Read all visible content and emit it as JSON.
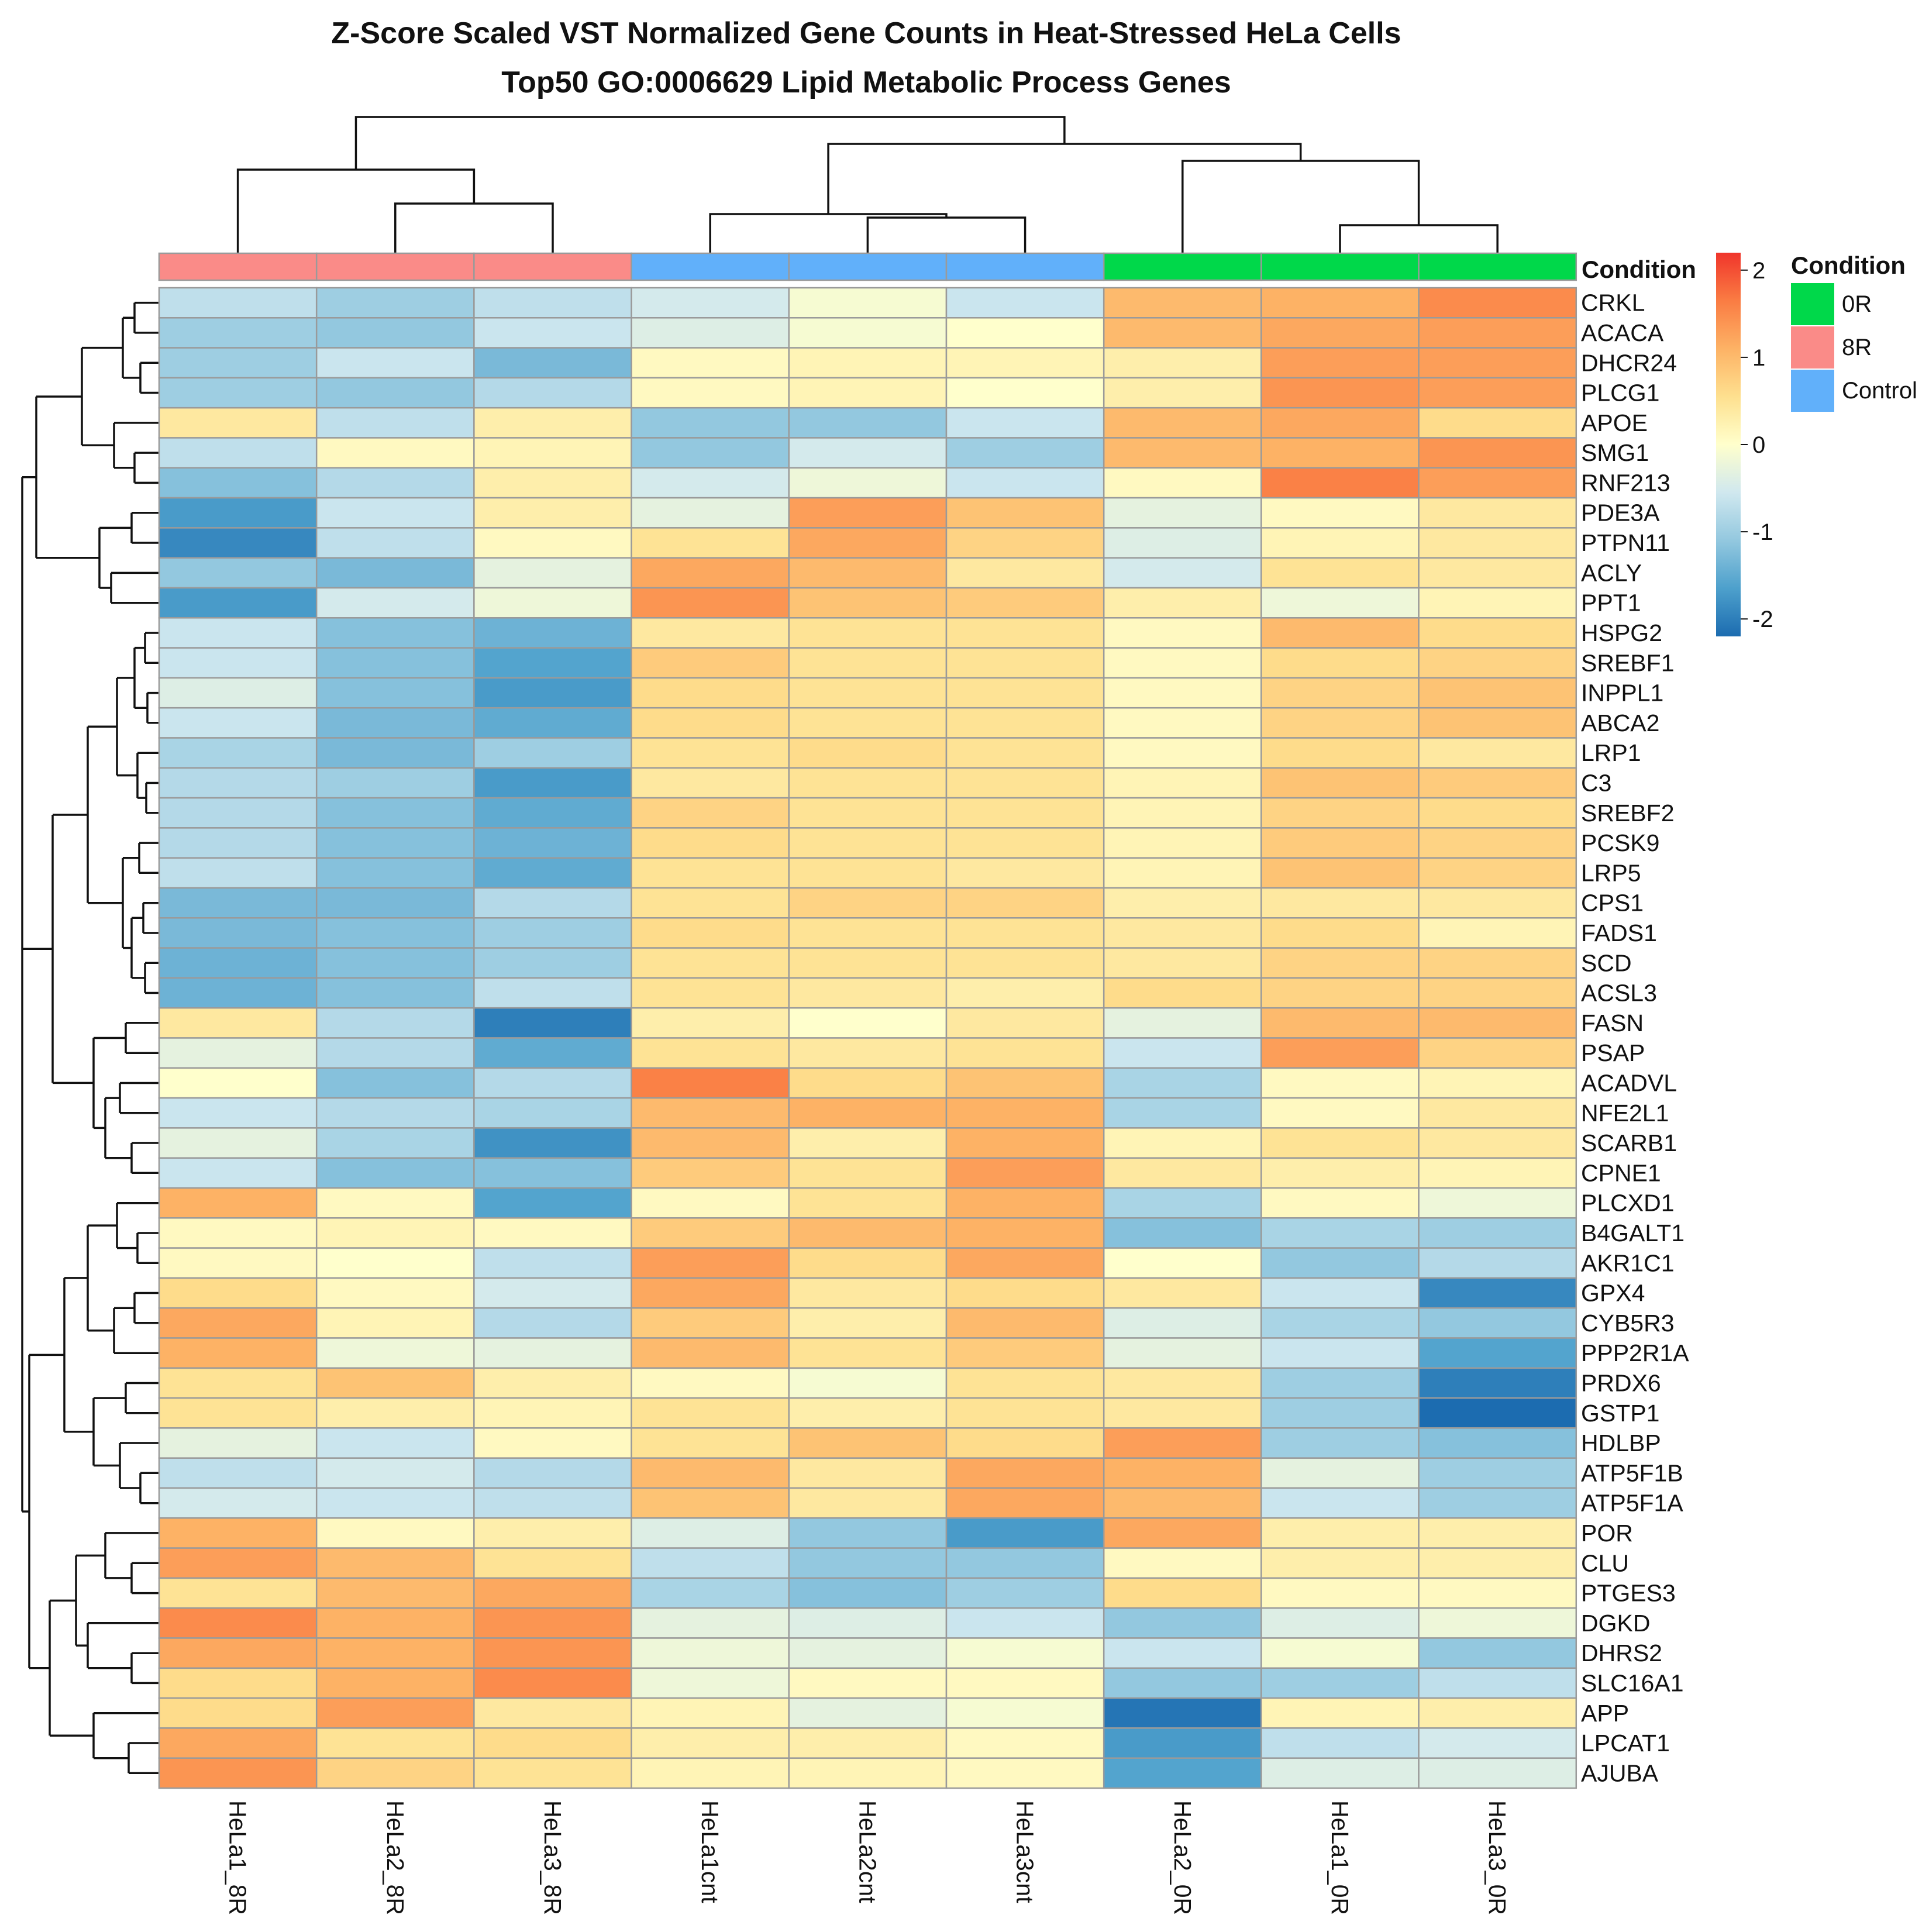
{
  "chart_data": {
    "type": "heatmap",
    "title": "Z-Score Scaled VST Normalized Gene Counts in Heat-Stressed HeLa Cells",
    "subtitle": "Top50 GO:0006629 Lipid Metabolic Process Genes",
    "samples": [
      "HeLa1_8R",
      "HeLa2_8R",
      "HeLa3_8R",
      "HeLa1cnt",
      "HeLa2cnt",
      "HeLa3cnt",
      "HeLa2_0R",
      "HeLa1_0R",
      "HeLa3_0R"
    ],
    "sample_conditions": [
      "8R",
      "8R",
      "8R",
      "Control",
      "Control",
      "Control",
      "0R",
      "0R",
      "0R"
    ],
    "annotation_title": "Condition",
    "annotation_legend": [
      {
        "label": "0R",
        "color": "#00d84a"
      },
      {
        "label": "8R",
        "color": "#fa8b88"
      },
      {
        "label": "Control",
        "color": "#61b0fa"
      }
    ],
    "color_scale": {
      "min": -2.2,
      "max": 2.2,
      "ticks": [
        2,
        1,
        0,
        -1,
        -2
      ],
      "stops": [
        "#1c6cb0",
        "#4da0cc",
        "#93c8df",
        "#d0e8ef",
        "#ffffcc",
        "#fee08f",
        "#fdb265",
        "#fa7c43",
        "#f0352b"
      ]
    },
    "genes": [
      "CRKL",
      "ACACA",
      "DHCR24",
      "PLCG1",
      "APOE",
      "SMG1",
      "RNF213",
      "PDE3A",
      "PTPN11",
      "ACLY",
      "PPT1",
      "HSPG2",
      "SREBF1",
      "INPPL1",
      "ABCA2",
      "LRP1",
      "C3",
      "SREBF2",
      "PCSK9",
      "LRP5",
      "CPS1",
      "FADS1",
      "SCD",
      "ACSL3",
      "FASN",
      "PSAP",
      "ACADVL",
      "NFE2L1",
      "SCARB1",
      "CPNE1",
      "PLCXD1",
      "B4GALT1",
      "AKR1C1",
      "GPX4",
      "CYB5R3",
      "PPP2R1A",
      "PRDX6",
      "GSTP1",
      "HDLBP",
      "ATP5F1B",
      "ATP5F1A",
      "POR",
      "CLU",
      "PTGES3",
      "DGKD",
      "DHRS2",
      "SLC16A1",
      "APP",
      "LPCAT1",
      "AJUBA"
    ],
    "values": [
      [
        -0.7,
        -1.0,
        -0.7,
        -0.5,
        -0.1,
        -0.6,
        1.0,
        1.1,
        1.5
      ],
      [
        -1.0,
        -1.1,
        -0.6,
        -0.4,
        -0.1,
        0.0,
        1.0,
        1.2,
        1.3
      ],
      [
        -1.0,
        -0.6,
        -1.3,
        0.1,
        0.2,
        0.2,
        0.3,
        1.3,
        1.3
      ],
      [
        -1.0,
        -1.1,
        -0.8,
        0.1,
        0.2,
        0.0,
        0.3,
        1.4,
        1.3
      ],
      [
        0.4,
        -0.7,
        0.3,
        -1.1,
        -1.1,
        -0.6,
        1.0,
        1.2,
        0.6
      ],
      [
        -0.7,
        0.1,
        0.2,
        -1.1,
        -0.5,
        -1.0,
        1.0,
        1.1,
        1.4
      ],
      [
        -1.2,
        -0.8,
        0.3,
        -0.5,
        -0.2,
        -0.6,
        0.1,
        1.6,
        1.3
      ],
      [
        -1.7,
        -0.6,
        0.3,
        -0.3,
        1.3,
        0.9,
        -0.3,
        0.1,
        0.4
      ],
      [
        -1.9,
        -0.7,
        0.1,
        0.5,
        1.2,
        0.7,
        -0.4,
        0.2,
        0.4
      ],
      [
        -1.1,
        -1.3,
        -0.3,
        1.2,
        1.0,
        0.4,
        -0.5,
        0.5,
        0.4
      ],
      [
        -1.7,
        -0.5,
        -0.2,
        1.4,
        0.9,
        0.8,
        0.3,
        -0.2,
        0.2
      ],
      [
        -0.6,
        -1.2,
        -1.4,
        0.4,
        0.5,
        0.5,
        0.1,
        1.0,
        0.6
      ],
      [
        -0.6,
        -1.2,
        -1.6,
        0.8,
        0.5,
        0.5,
        0.1,
        0.6,
        0.7
      ],
      [
        -0.4,
        -1.2,
        -1.7,
        0.6,
        0.5,
        0.5,
        0.1,
        0.7,
        0.9
      ],
      [
        -0.6,
        -1.3,
        -1.5,
        0.6,
        0.5,
        0.5,
        0.1,
        0.7,
        0.9
      ],
      [
        -0.9,
        -1.3,
        -1.0,
        0.5,
        0.6,
        0.5,
        0.1,
        0.6,
        0.4
      ],
      [
        -0.8,
        -1.0,
        -1.7,
        0.4,
        0.5,
        0.5,
        0.2,
        0.9,
        0.8
      ],
      [
        -0.8,
        -1.2,
        -1.5,
        0.7,
        0.5,
        0.5,
        0.2,
        0.7,
        0.6
      ],
      [
        -0.8,
        -1.2,
        -1.4,
        0.6,
        0.5,
        0.5,
        0.2,
        0.8,
        0.7
      ],
      [
        -0.7,
        -1.2,
        -1.5,
        0.5,
        0.5,
        0.4,
        0.2,
        0.9,
        0.7
      ],
      [
        -1.3,
        -1.3,
        -0.8,
        0.5,
        0.7,
        0.7,
        0.3,
        0.4,
        0.4
      ],
      [
        -1.3,
        -1.2,
        -1.0,
        0.6,
        0.5,
        0.5,
        0.4,
        0.6,
        0.2
      ],
      [
        -1.4,
        -1.2,
        -1.0,
        0.5,
        0.5,
        0.5,
        0.4,
        0.7,
        0.7
      ],
      [
        -1.4,
        -1.2,
        -0.7,
        0.5,
        0.4,
        0.3,
        0.6,
        0.7,
        0.7
      ],
      [
        0.4,
        -0.8,
        -2.0,
        0.3,
        0.0,
        0.4,
        -0.3,
        1.0,
        1.0
      ],
      [
        -0.3,
        -0.8,
        -1.5,
        0.5,
        0.4,
        0.5,
        -0.6,
        1.3,
        0.7
      ],
      [
        0.0,
        -1.2,
        -0.8,
        1.6,
        0.6,
        0.9,
        -0.9,
        0.1,
        0.2
      ],
      [
        -0.6,
        -0.8,
        -0.9,
        1.0,
        1.1,
        1.1,
        -0.9,
        0.1,
        0.4
      ],
      [
        -0.3,
        -0.9,
        -1.8,
        1.0,
        0.3,
        1.1,
        0.2,
        0.5,
        0.4
      ],
      [
        -0.6,
        -1.2,
        -1.2,
        0.8,
        0.5,
        1.3,
        0.4,
        0.3,
        0.2
      ],
      [
        1.1,
        0.1,
        -1.6,
        0.1,
        0.5,
        1.1,
        -0.9,
        0.1,
        -0.2
      ],
      [
        0.1,
        0.2,
        0.1,
        0.8,
        1.0,
        1.1,
        -1.2,
        -0.9,
        -1.0
      ],
      [
        0.1,
        0.0,
        -0.7,
        1.3,
        0.6,
        1.2,
        0.0,
        -1.1,
        -0.8
      ],
      [
        0.6,
        0.1,
        -0.5,
        1.2,
        0.4,
        0.6,
        0.4,
        -0.6,
        -1.9
      ],
      [
        1.2,
        0.2,
        -0.8,
        0.8,
        0.3,
        1.0,
        -0.4,
        -0.9,
        -1.1
      ],
      [
        1.1,
        -0.2,
        -0.3,
        1.0,
        0.5,
        0.8,
        -0.3,
        -0.6,
        -1.6
      ],
      [
        0.5,
        0.9,
        0.3,
        0.1,
        -0.1,
        0.5,
        0.4,
        -1.0,
        -2.0
      ],
      [
        0.5,
        0.3,
        0.2,
        0.5,
        0.3,
        0.5,
        0.4,
        -1.0,
        -2.2
      ],
      [
        -0.3,
        -0.6,
        0.1,
        0.5,
        0.9,
        0.6,
        1.3,
        -1.0,
        -1.2
      ],
      [
        -0.7,
        -0.5,
        -0.8,
        1.0,
        0.4,
        1.2,
        1.1,
        -0.3,
        -1.0
      ],
      [
        -0.5,
        -0.6,
        -0.7,
        0.9,
        0.4,
        1.2,
        1.0,
        -0.6,
        -1.0
      ],
      [
        1.1,
        0.1,
        0.3,
        -0.4,
        -1.1,
        -1.7,
        1.2,
        0.3,
        0.3
      ],
      [
        1.3,
        1.0,
        0.5,
        -0.7,
        -1.1,
        -1.1,
        0.1,
        0.3,
        0.3
      ],
      [
        0.5,
        1.0,
        1.2,
        -0.9,
        -1.2,
        -1.0,
        0.6,
        0.1,
        0.1
      ],
      [
        1.5,
        1.1,
        1.4,
        -0.3,
        -0.4,
        -0.6,
        -1.1,
        -0.4,
        -0.2
      ],
      [
        1.2,
        1.1,
        1.4,
        -0.2,
        -0.3,
        -0.1,
        -0.6,
        -0.1,
        -1.1
      ],
      [
        0.6,
        1.1,
        1.5,
        -0.2,
        0.1,
        0.1,
        -1.1,
        -1.0,
        -0.7
      ],
      [
        0.6,
        1.3,
        0.4,
        0.2,
        -0.3,
        -0.1,
        -2.1,
        0.2,
        0.3
      ],
      [
        1.2,
        0.5,
        0.6,
        0.3,
        0.3,
        0.1,
        -1.7,
        -0.7,
        -0.5
      ],
      [
        1.4,
        0.7,
        0.5,
        0.2,
        0.2,
        0.1,
        -1.6,
        -0.4,
        -0.4
      ]
    ]
  }
}
